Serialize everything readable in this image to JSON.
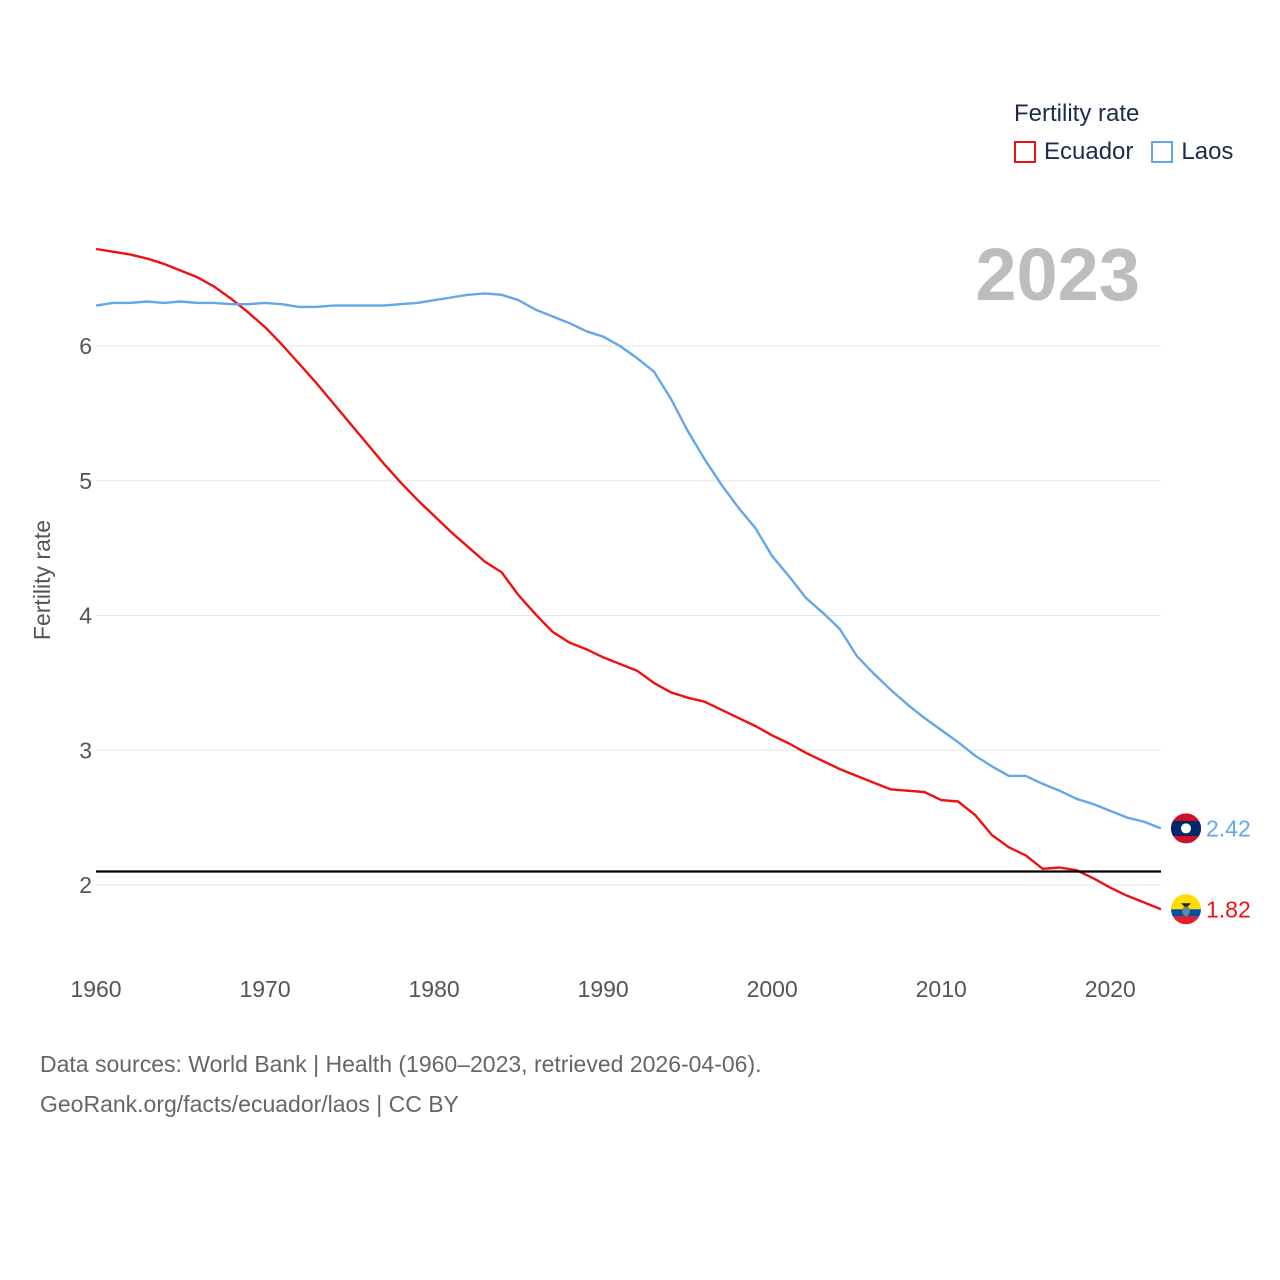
{
  "chart_data": {
    "type": "line",
    "title": "",
    "year_label": "2023",
    "ylabel": "Fertility rate",
    "xlabel": "",
    "legend_title": "Fertility rate",
    "xlim": [
      1960,
      2023
    ],
    "ylim": [
      1.5,
      7.0
    ],
    "x_ticks": [
      1960,
      1970,
      1980,
      1990,
      2000,
      2010,
      2020
    ],
    "y_ticks": [
      2,
      3,
      4,
      5,
      6
    ],
    "reference_line": {
      "y": 2.1,
      "color": "#000000"
    },
    "x": [
      1960,
      1961,
      1962,
      1963,
      1964,
      1965,
      1966,
      1967,
      1968,
      1969,
      1970,
      1971,
      1972,
      1973,
      1974,
      1975,
      1976,
      1977,
      1978,
      1979,
      1980,
      1981,
      1982,
      1983,
      1984,
      1985,
      1986,
      1987,
      1988,
      1989,
      1990,
      1991,
      1992,
      1993,
      1994,
      1995,
      1996,
      1997,
      1998,
      1999,
      2000,
      2001,
      2002,
      2003,
      2004,
      2005,
      2006,
      2007,
      2008,
      2009,
      2010,
      2011,
      2012,
      2013,
      2014,
      2015,
      2016,
      2017,
      2018,
      2019,
      2020,
      2021,
      2022,
      2023
    ],
    "series": [
      {
        "name": "Ecuador",
        "color": "#ee1111",
        "end_label": "1.82",
        "values": [
          6.72,
          6.7,
          6.68,
          6.65,
          6.61,
          6.56,
          6.51,
          6.44,
          6.35,
          6.25,
          6.14,
          6.01,
          5.87,
          5.73,
          5.58,
          5.43,
          5.28,
          5.13,
          4.99,
          4.86,
          4.74,
          4.62,
          4.51,
          4.4,
          4.32,
          4.15,
          4.01,
          3.88,
          3.8,
          3.75,
          3.69,
          3.64,
          3.59,
          3.5,
          3.43,
          3.39,
          3.36,
          3.3,
          3.24,
          3.18,
          3.11,
          3.05,
          2.98,
          2.92,
          2.86,
          2.81,
          2.76,
          2.71,
          2.7,
          2.69,
          2.63,
          2.62,
          2.52,
          2.37,
          2.28,
          2.22,
          2.12,
          2.13,
          2.11,
          2.05,
          1.98,
          1.92,
          1.87,
          1.82
        ]
      },
      {
        "name": "Laos",
        "color": "#62a8e8",
        "end_label": "2.42",
        "values": [
          6.3,
          6.32,
          6.32,
          6.33,
          6.32,
          6.33,
          6.32,
          6.32,
          6.31,
          6.31,
          6.32,
          6.31,
          6.29,
          6.29,
          6.3,
          6.3,
          6.3,
          6.3,
          6.31,
          6.32,
          6.34,
          6.36,
          6.38,
          6.39,
          6.38,
          6.34,
          6.27,
          6.22,
          6.17,
          6.11,
          6.07,
          6.0,
          5.91,
          5.81,
          5.61,
          5.37,
          5.16,
          4.97,
          4.8,
          4.65,
          4.44,
          4.29,
          4.13,
          4.02,
          3.9,
          3.7,
          3.57,
          3.45,
          3.34,
          3.24,
          3.15,
          3.06,
          2.96,
          2.88,
          2.81,
          2.81,
          2.75,
          2.7,
          2.64,
          2.6,
          2.55,
          2.5,
          2.47,
          2.42
        ]
      }
    ]
  },
  "footer": {
    "line1": "Data sources: World Bank | Health (1960–2023, retrieved 2026-04-06).",
    "line2": "GeoRank.org/facts/ecuador/laos | CC BY"
  }
}
